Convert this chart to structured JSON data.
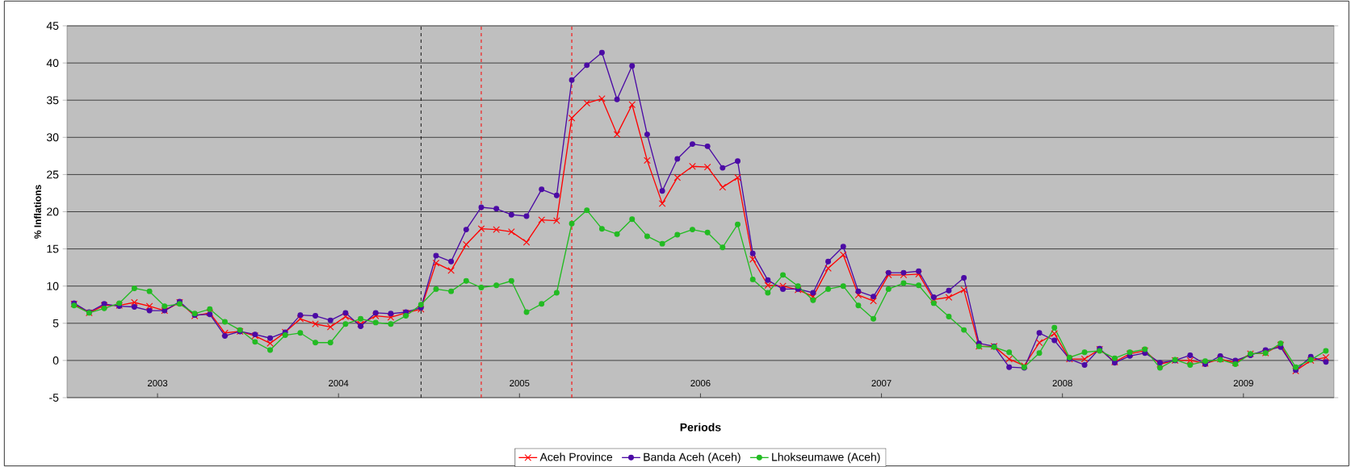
{
  "chart_data": {
    "type": "line",
    "xlabel": "Periods",
    "ylabel": "% Inflations",
    "x": [
      "2003-01-15",
      "2003-02-15",
      "2003-03-15",
      "2003-04-15",
      "2003-05-15",
      "2003-06-15",
      "2003-07-15",
      "2003-08-15",
      "2003-09-15",
      "2003-10-15",
      "2003-11-15",
      "2003-12-15",
      "2004-01-15",
      "2004-02-15",
      "2004-03-15",
      "2004-04-15",
      "2004-05-15",
      "2004-06-15",
      "2004-07-15",
      "2004-08-15",
      "2004-09-15",
      "2004-10-15",
      "2004-11-15",
      "2004-12-15",
      "2005-01-15",
      "2005-02-15",
      "2005-03-15",
      "2005-04-15",
      "2005-05-15",
      "2005-06-15",
      "2005-07-15",
      "2005-08-15",
      "2005-09-15",
      "2005-10-15",
      "2005-11-15",
      "2005-12-15",
      "2006-01-15",
      "2006-02-15",
      "2006-03-15",
      "2006-04-15",
      "2006-05-15",
      "2006-06-15",
      "2006-07-15",
      "2006-08-15",
      "2006-09-15",
      "2006-10-15",
      "2006-11-15",
      "2006-12-15",
      "2007-01-15",
      "2007-02-15",
      "2007-03-15",
      "2007-04-15",
      "2007-05-15",
      "2007-06-15",
      "2007-07-15",
      "2007-08-15",
      "2007-09-15",
      "2007-10-15",
      "2007-11-15",
      "2007-12-15",
      "2008-01-15",
      "2008-02-15",
      "2008-03-15",
      "2008-04-15",
      "2008-05-15",
      "2008-06-15",
      "2008-07-15",
      "2008-08-15",
      "2008-09-15",
      "2008-10-15",
      "2008-11-15",
      "2008-12-15",
      "2009-01-15",
      "2009-02-15",
      "2009-03-15",
      "2009-04-15",
      "2009-05-15",
      "2009-06-15",
      "2009-07-15",
      "2009-08-15",
      "2009-09-15",
      "2009-10-15",
      "2009-11-15",
      "2009-12-15"
    ],
    "series": [
      {
        "name": "Aceh Province",
        "color": "#ff0000",
        "marker": "cross",
        "values": [
          7.6,
          6.4,
          7.4,
          7.4,
          7.8,
          7.3,
          6.7,
          7.8,
          6.0,
          6.4,
          3.7,
          3.9,
          3.3,
          2.3,
          3.8,
          5.6,
          4.9,
          4.5,
          5.9,
          4.9,
          6.0,
          5.8,
          6.4,
          6.9,
          13.1,
          12.1,
          15.6,
          17.7,
          17.6,
          17.3,
          15.9,
          18.9,
          18.8,
          32.6,
          34.6,
          35.2,
          30.4,
          34.4,
          26.9,
          21.1,
          24.6,
          26.1,
          26.0,
          23.3,
          24.6,
          13.6,
          10.1,
          10.0,
          9.5,
          8.6,
          12.4,
          14.2,
          8.8,
          8.0,
          11.5,
          11.5,
          11.6,
          8.2,
          8.5,
          9.5,
          1.9,
          1.9,
          0.2,
          -0.7,
          2.4,
          3.6,
          0.2,
          0.2,
          1.5,
          -0.2,
          0.9,
          1.3,
          -0.5,
          0.0,
          0.0,
          -0.4,
          0.2,
          -0.3,
          0.9,
          1.0,
          2.1,
          -1.4,
          0.0,
          0.4
        ]
      },
      {
        "name": "Banda Aceh (Aceh)",
        "color": "#4b0aa5",
        "marker": "circle",
        "values": [
          7.7,
          6.5,
          7.6,
          7.3,
          7.2,
          6.7,
          6.7,
          7.9,
          6.1,
          6.2,
          3.3,
          3.9,
          3.5,
          3.0,
          3.8,
          6.1,
          6.0,
          5.4,
          6.4,
          4.6,
          6.4,
          6.3,
          6.5,
          7.1,
          14.1,
          13.3,
          17.6,
          20.6,
          20.4,
          19.6,
          19.4,
          23.0,
          22.2,
          37.7,
          39.7,
          41.4,
          35.1,
          39.6,
          30.4,
          22.8,
          27.1,
          29.1,
          28.8,
          25.9,
          26.8,
          14.4,
          10.8,
          9.6,
          9.6,
          9.1,
          13.3,
          15.3,
          9.3,
          8.6,
          11.8,
          11.8,
          12.0,
          8.5,
          9.4,
          11.1,
          2.3,
          1.9,
          -0.9,
          -1.0,
          3.7,
          2.7,
          0.2,
          -0.6,
          1.6,
          -0.3,
          0.6,
          1.0,
          -0.3,
          0.0,
          0.7,
          -0.5,
          0.6,
          0.0,
          0.7,
          1.4,
          1.8,
          -1.3,
          0.5,
          -0.2
        ]
      },
      {
        "name": "Lhokseumawe (Aceh)",
        "color": "#22bb22",
        "marker": "circle",
        "values": [
          7.4,
          6.4,
          7.0,
          7.7,
          9.7,
          9.3,
          7.3,
          7.6,
          6.3,
          6.9,
          5.2,
          4.1,
          2.5,
          1.4,
          3.4,
          3.7,
          2.4,
          2.4,
          4.9,
          5.6,
          5.1,
          4.9,
          6.0,
          7.5,
          9.6,
          9.3,
          10.7,
          9.8,
          10.1,
          10.7,
          6.5,
          7.6,
          9.1,
          18.4,
          20.2,
          17.7,
          17.0,
          19.0,
          16.7,
          15.7,
          16.9,
          17.6,
          17.2,
          15.2,
          18.3,
          10.9,
          9.1,
          11.5,
          10.0,
          8.1,
          9.6,
          10.0,
          7.4,
          5.6,
          9.6,
          10.4,
          10.1,
          7.7,
          5.9,
          4.1,
          1.9,
          1.8,
          1.1,
          -0.9,
          1.0,
          4.4,
          0.4,
          1.1,
          1.3,
          0.3,
          1.1,
          1.5,
          -1.0,
          0.1,
          -0.6,
          -0.1,
          0.1,
          -0.5,
          0.9,
          1.0,
          2.3,
          -0.9,
          0.1,
          1.3
        ]
      }
    ],
    "xlim": [
      "2003-01",
      "2010-01"
    ],
    "xticks": [
      {
        "value": "2003-07",
        "label": "2003"
      },
      {
        "value": "2004-07",
        "label": "2004"
      },
      {
        "value": "2005-07",
        "label": "2005"
      },
      {
        "value": "2006-07",
        "label": "2006"
      },
      {
        "value": "2007-07",
        "label": "2007"
      },
      {
        "value": "2008-07",
        "label": "2008"
      },
      {
        "value": "2009-07",
        "label": "2009"
      }
    ],
    "ylim": [
      -5,
      45
    ],
    "yticks": [
      -5,
      0,
      5,
      10,
      15,
      20,
      25,
      30,
      35,
      40,
      45
    ],
    "ref_lines": [
      {
        "axis": "x",
        "value": "2004-12-15",
        "color": "#000000",
        "line_style": "dashed"
      },
      {
        "axis": "x",
        "value": "2005-04-15",
        "color": "#ff0000",
        "line_style": "dashed"
      },
      {
        "axis": "x",
        "value": "2005-10-15",
        "color": "#ff0000",
        "line_style": "dashed"
      }
    ],
    "grid": "y",
    "legend": "bottom",
    "line_style": "solid"
  }
}
